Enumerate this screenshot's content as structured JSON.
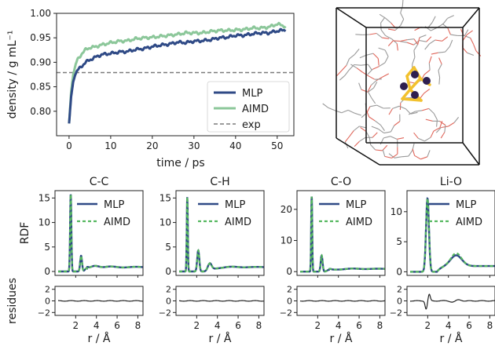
{
  "colors": {
    "mlp": "#2f4a86",
    "aimd": "#8cc79a",
    "aimd_dash": "#55b85f",
    "exp": "#7a7a7a",
    "carbon": "#9a9a9a",
    "oxygen": "#e0665a",
    "lithium": "#2e1f4f",
    "phosphorus": "#f2c12e",
    "box": "#111111"
  },
  "chart_data": [
    {
      "id": "density",
      "type": "line",
      "title": "",
      "xlabel": "time / ps",
      "ylabel": "density / g mL⁻¹",
      "xlim": [
        -3,
        54
      ],
      "ylim": [
        0.75,
        1.0
      ],
      "xticks": [
        0,
        10,
        20,
        30,
        40,
        50
      ],
      "yticks": [
        0.8,
        0.85,
        0.9,
        0.95,
        1.0
      ],
      "ytick_labels": [
        "0.80",
        "0.85",
        "0.90",
        "0.95",
        "1.00"
      ],
      "legend_position": "lower-right",
      "series": [
        {
          "name": "MLP",
          "style": "solid",
          "x": [
            0,
            0.5,
            1,
            1.5,
            2,
            3,
            4,
            5,
            6,
            7,
            8,
            10,
            12,
            14,
            16,
            18,
            20,
            22,
            24,
            26,
            28,
            30,
            32,
            34,
            36,
            38,
            40,
            42,
            44,
            46,
            48,
            50,
            51,
            52
          ],
          "y": [
            0.775,
            0.83,
            0.86,
            0.875,
            0.883,
            0.892,
            0.9,
            0.905,
            0.909,
            0.913,
            0.916,
            0.918,
            0.921,
            0.922,
            0.926,
            0.928,
            0.932,
            0.935,
            0.937,
            0.941,
            0.94,
            0.943,
            0.944,
            0.946,
            0.95,
            0.951,
            0.955,
            0.955,
            0.958,
            0.96,
            0.96,
            0.964,
            0.965,
            0.966
          ]
        },
        {
          "name": "AIMD",
          "style": "solid",
          "x": [
            0,
            0.5,
            1,
            1.5,
            2,
            3,
            4,
            5,
            6,
            8,
            10,
            12,
            14,
            16,
            18,
            20,
            22,
            24,
            26,
            28,
            30,
            32,
            34,
            36,
            38,
            40,
            42,
            44,
            46,
            48,
            50,
            51,
            52
          ],
          "y": [
            0.775,
            0.84,
            0.875,
            0.893,
            0.905,
            0.917,
            0.926,
            0.93,
            0.931,
            0.936,
            0.94,
            0.943,
            0.944,
            0.948,
            0.95,
            0.951,
            0.953,
            0.955,
            0.957,
            0.96,
            0.96,
            0.96,
            0.963,
            0.965,
            0.965,
            0.966,
            0.967,
            0.97,
            0.97,
            0.972,
            0.978,
            0.976,
            0.973
          ]
        },
        {
          "name": "exp",
          "style": "dashed",
          "constant": 0.879
        }
      ]
    },
    {
      "id": "rdf",
      "type": "line",
      "ylabel": "RDF",
      "residue_ylabel": "residues",
      "xlabel": "r / Å",
      "xlim": [
        0,
        8.5
      ],
      "xticks": [
        2,
        4,
        6,
        8
      ],
      "residue_ylim": [
        -2.5,
        2.5
      ],
      "residue_yticks": [
        -2,
        0,
        2
      ],
      "legend_position": "upper-right",
      "legend_entries": [
        "MLP",
        "AIMD"
      ],
      "panels": [
        {
          "title": "C-C",
          "ylim": [
            -0.8,
            16.5
          ],
          "yticks": [
            0,
            5,
            10,
            15
          ],
          "peaks": [
            {
              "r": 1.52,
              "h": 15.8,
              "w": 0.06
            },
            {
              "r": 2.52,
              "h": 3.2,
              "w": 0.09
            },
            {
              "r": 3.05,
              "h": 0.6,
              "w": 0.15
            },
            {
              "r": 3.9,
              "h": 0.5,
              "w": 0.4
            }
          ],
          "baseline": 0.9,
          "onset": 3.4,
          "ripple": 0.25
        },
        {
          "title": "C-H",
          "ylim": [
            -0.8,
            16.5
          ],
          "yticks": [
            0,
            5,
            10,
            15
          ],
          "peaks": [
            {
              "r": 1.09,
              "h": 15.2,
              "w": 0.05
            },
            {
              "r": 2.15,
              "h": 4.3,
              "w": 0.1
            },
            {
              "r": 3.25,
              "h": 1.6,
              "w": 0.18
            }
          ],
          "baseline": 0.9,
          "onset": 3.6,
          "ripple": 0.15
        },
        {
          "title": "C-O",
          "ylim": [
            -1.2,
            26
          ],
          "yticks": [
            0,
            10,
            20
          ],
          "peaks": [
            {
              "r": 1.42,
              "h": 24.2,
              "w": 0.05
            },
            {
              "r": 2.38,
              "h": 5.2,
              "w": 0.09
            },
            {
              "r": 3.1,
              "h": 0.6,
              "w": 0.18
            }
          ],
          "baseline": 0.9,
          "onset": 3.4,
          "ripple": 0.2
        },
        {
          "title": "Li-O",
          "ylim": [
            -0.6,
            13.5
          ],
          "yticks": [
            0,
            5,
            10
          ],
          "peaks": [
            {
              "r": 1.98,
              "h": 12.2,
              "w": 0.14
            },
            {
              "r": 4.75,
              "h": 1.8,
              "w": 0.55
            }
          ],
          "baseline": 0.95,
          "onset": 3.2,
          "ripple": 0.0,
          "aimd_offset": 0.35,
          "residue_spike": true
        }
      ]
    }
  ]
}
